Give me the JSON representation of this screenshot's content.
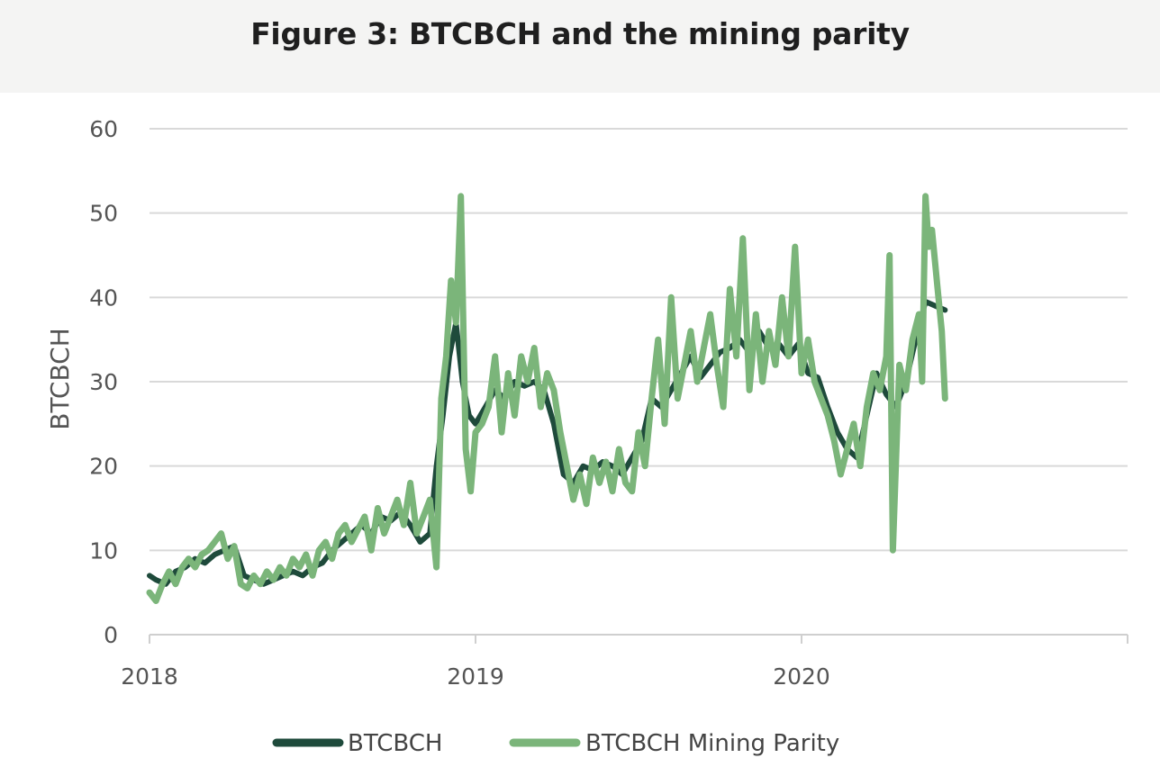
{
  "header": {
    "title": "Figure 3: BTCBCH and the mining parity"
  },
  "chart_data": {
    "type": "line",
    "title": "Figure 3: BTCBCH and the mining parity",
    "xlabel": "",
    "ylabel": "BTCBCH",
    "xlim": [
      2018.0,
      2021.0
    ],
    "ylim": [
      0,
      60
    ],
    "y_ticks": [
      0,
      10,
      20,
      30,
      40,
      50,
      60
    ],
    "x_ticks": [
      2018,
      2019,
      2020
    ],
    "x_tick_labels": [
      "2018",
      "2019",
      "2020"
    ],
    "grid": "horizontal",
    "legend": "bottom",
    "series": [
      {
        "name": "BTCBCH",
        "color": "#1e4a3b",
        "x": [
          2018.0,
          2018.02,
          2018.05,
          2018.08,
          2018.11,
          2018.14,
          2018.17,
          2018.2,
          2018.23,
          2018.26,
          2018.29,
          2018.32,
          2018.35,
          2018.38,
          2018.41,
          2018.44,
          2018.47,
          2018.5,
          2018.53,
          2018.56,
          2018.59,
          2018.62,
          2018.65,
          2018.68,
          2018.71,
          2018.74,
          2018.77,
          2018.8,
          2018.83,
          2018.86,
          2018.88,
          2018.9,
          2018.92,
          2018.94,
          2018.96,
          2018.98,
          2019.0,
          2019.03,
          2019.06,
          2019.09,
          2019.12,
          2019.15,
          2019.18,
          2019.21,
          2019.24,
          2019.27,
          2019.3,
          2019.33,
          2019.36,
          2019.39,
          2019.42,
          2019.45,
          2019.48,
          2019.51,
          2019.54,
          2019.57,
          2019.6,
          2019.63,
          2019.66,
          2019.69,
          2019.72,
          2019.75,
          2019.78,
          2019.81,
          2019.84,
          2019.87,
          2019.9,
          2019.93,
          2019.96,
          2019.99,
          2020.02,
          2020.05,
          2020.08,
          2020.11,
          2020.14,
          2020.17,
          2020.2,
          2020.23,
          2020.26,
          2020.29,
          2020.32,
          2020.35,
          2020.38,
          2020.41,
          2020.44
        ],
        "values": [
          7,
          6.5,
          6,
          7.5,
          8,
          9,
          8.5,
          9.5,
          10,
          10.5,
          7,
          6.5,
          6,
          6.5,
          7,
          7.5,
          7,
          8,
          8.5,
          10,
          11,
          12,
          13,
          12,
          14,
          13.5,
          14.5,
          13,
          11,
          12,
          20,
          26,
          33,
          37,
          30,
          26,
          25,
          27,
          29,
          28,
          30,
          29.5,
          30,
          29,
          25,
          19,
          18,
          20,
          19.5,
          20.5,
          20,
          19,
          21,
          23,
          28,
          27,
          29,
          31,
          33,
          30.5,
          32,
          33.5,
          34,
          35,
          33.5,
          36,
          34,
          34.5,
          33,
          34.5,
          31,
          30.5,
          27,
          24,
          22,
          21,
          26,
          31,
          28.5,
          27,
          30,
          35,
          39.5,
          39,
          38.5
        ]
      },
      {
        "name": "BTCBCH Mining Parity",
        "color": "#7bb57a",
        "x": [
          2018.0,
          2018.02,
          2018.04,
          2018.06,
          2018.08,
          2018.1,
          2018.12,
          2018.14,
          2018.16,
          2018.18,
          2018.2,
          2018.22,
          2018.24,
          2018.26,
          2018.28,
          2018.3,
          2018.32,
          2018.34,
          2018.36,
          2018.38,
          2018.4,
          2018.42,
          2018.44,
          2018.46,
          2018.48,
          2018.5,
          2018.52,
          2018.54,
          2018.56,
          2018.58,
          2018.6,
          2018.62,
          2018.64,
          2018.66,
          2018.68,
          2018.7,
          2018.72,
          2018.74,
          2018.76,
          2018.78,
          2018.8,
          2018.82,
          2018.84,
          2018.86,
          2018.88,
          2018.895,
          2018.91,
          2018.925,
          2018.94,
          2018.955,
          2018.97,
          2018.985,
          2019.0,
          2019.02,
          2019.04,
          2019.06,
          2019.08,
          2019.1,
          2019.12,
          2019.14,
          2019.16,
          2019.18,
          2019.2,
          2019.22,
          2019.24,
          2019.26,
          2019.28,
          2019.3,
          2019.32,
          2019.34,
          2019.36,
          2019.38,
          2019.4,
          2019.42,
          2019.44,
          2019.46,
          2019.48,
          2019.5,
          2019.52,
          2019.54,
          2019.56,
          2019.58,
          2019.6,
          2019.62,
          2019.64,
          2019.66,
          2019.68,
          2019.7,
          2019.72,
          2019.74,
          2019.76,
          2019.78,
          2019.8,
          2019.82,
          2019.84,
          2019.86,
          2019.88,
          2019.9,
          2019.92,
          2019.94,
          2019.96,
          2019.98,
          2020.0,
          2020.02,
          2020.04,
          2020.06,
          2020.08,
          2020.1,
          2020.12,
          2020.14,
          2020.16,
          2020.18,
          2020.2,
          2020.22,
          2020.24,
          2020.26,
          2020.27,
          2020.28,
          2020.3,
          2020.32,
          2020.34,
          2020.36,
          2020.37,
          2020.38,
          2020.39,
          2020.4,
          2020.41,
          2020.42,
          2020.43,
          2020.44
        ],
        "values": [
          5,
          4,
          6,
          7.5,
          6,
          8,
          9,
          8,
          9.5,
          10,
          11,
          12,
          9,
          10.5,
          6,
          5.5,
          7,
          6,
          7.5,
          6.5,
          8,
          7,
          9,
          8,
          9.5,
          7,
          10,
          11,
          9,
          12,
          13,
          11,
          12.5,
          14,
          10,
          15,
          12,
          14,
          16,
          13,
          18,
          12,
          14,
          16,
          8,
          28,
          33,
          42,
          37,
          52,
          22,
          17,
          24,
          25,
          27,
          33,
          24,
          31,
          26,
          33,
          30,
          34,
          27,
          31,
          29,
          24,
          20,
          16,
          19,
          15.5,
          21,
          18,
          20.5,
          17,
          22,
          18,
          17,
          24,
          20,
          28,
          35,
          25,
          40,
          28,
          32,
          36,
          30,
          34,
          38,
          32,
          27,
          41,
          33,
          47,
          29,
          38,
          30,
          36,
          32,
          40,
          33,
          46,
          31,
          35,
          30,
          28,
          26,
          23,
          19,
          22,
          25,
          20,
          27,
          31,
          29,
          33,
          45,
          10,
          32,
          29,
          35,
          38,
          30,
          52,
          46,
          48,
          44,
          40,
          36,
          28
        ]
      }
    ]
  }
}
